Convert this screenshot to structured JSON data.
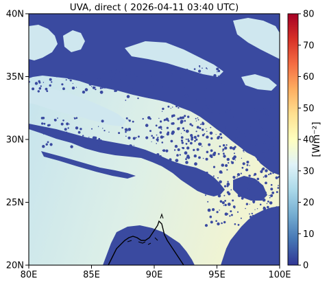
{
  "title": "UVA, direct ( 2026-04-11 03:40 UTC)",
  "map": {
    "lon_range": [
      80,
      100
    ],
    "lat_range": [
      20,
      40
    ],
    "x_ticks": [
      {
        "value": 80,
        "label": "80E"
      },
      {
        "value": 85,
        "label": "85E"
      },
      {
        "value": 90,
        "label": "90E"
      },
      {
        "value": 95,
        "label": "95E"
      },
      {
        "value": 100,
        "label": "100E"
      }
    ],
    "y_ticks": [
      {
        "value": 20,
        "label": "20N"
      },
      {
        "value": 25,
        "label": "25N"
      },
      {
        "value": 30,
        "label": "30N"
      },
      {
        "value": 35,
        "label": "35N"
      },
      {
        "value": 40,
        "label": "40N"
      }
    ],
    "cloud_color": "#3a4aa0",
    "clear_sky_color_west": "#c8e6ef",
    "clear_sky_color_east": "#eef5d8",
    "coastline_color": "#000000"
  },
  "colorbar": {
    "label": "[Wm⁻²]",
    "range": [
      0,
      80
    ],
    "ticks": [
      {
        "value": 0,
        "label": "0"
      },
      {
        "value": 10,
        "label": "10"
      },
      {
        "value": 20,
        "label": "20"
      },
      {
        "value": 30,
        "label": "30"
      },
      {
        "value": 40,
        "label": "40"
      },
      {
        "value": 50,
        "label": "50"
      },
      {
        "value": 60,
        "label": "60"
      },
      {
        "value": 70,
        "label": "70"
      },
      {
        "value": 80,
        "label": "80"
      }
    ],
    "colormap": [
      "#313695",
      "#4575b4",
      "#74add1",
      "#abd9e9",
      "#e0f3f8",
      "#ffffbf",
      "#fee090",
      "#fdae61",
      "#f46d43",
      "#d73027",
      "#a50026"
    ]
  }
}
